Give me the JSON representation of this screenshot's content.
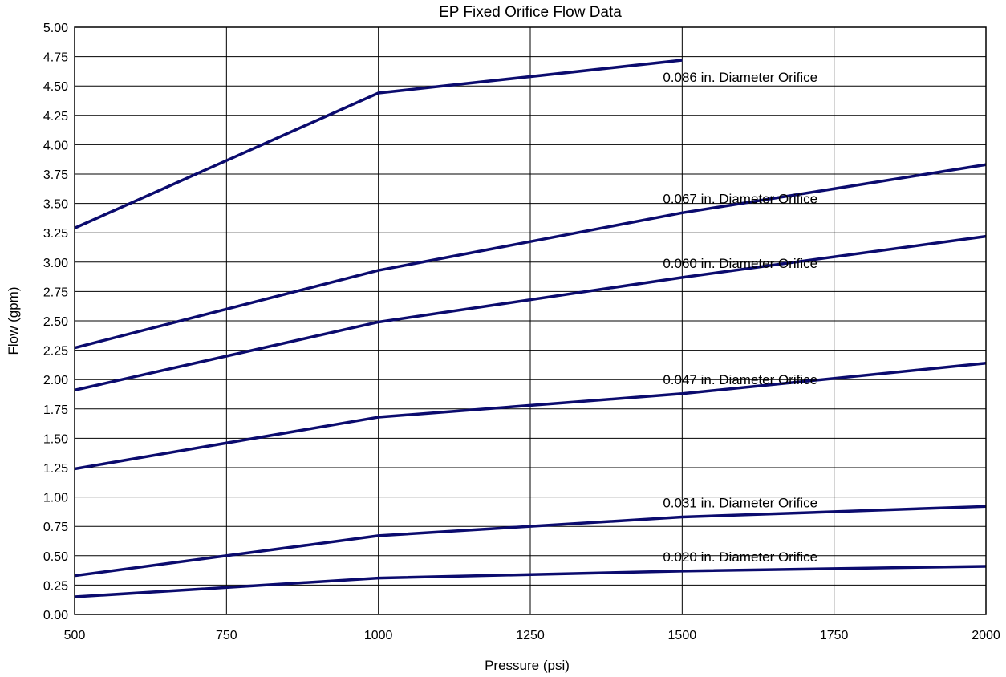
{
  "chart_data": {
    "type": "line",
    "title": "EP Fixed Orifice Flow Data",
    "xlabel": "Pressure (psi)",
    "ylabel": "Flow (gpm)",
    "xlim": [
      500,
      2000
    ],
    "ylim": [
      0,
      5
    ],
    "x_ticks": [
      "500",
      "750",
      "1000",
      "1250",
      "1500",
      "1750",
      "2000"
    ],
    "y_ticks": [
      "0.00",
      "0.25",
      "0.50",
      "0.75",
      "1.00",
      "1.25",
      "1.50",
      "1.75",
      "2.00",
      "2.25",
      "2.50",
      "2.75",
      "3.00",
      "3.25",
      "3.50",
      "3.75",
      "4.00",
      "4.25",
      "4.50",
      "4.75",
      "5.00"
    ],
    "grid": true,
    "legend": "none",
    "line_color": "#0b0b6e",
    "series": [
      {
        "name": "0.086 in. Diameter Orifice",
        "x": [
          500,
          1000,
          1500
        ],
        "values": [
          3.29,
          4.44,
          4.72
        ]
      },
      {
        "name": "0.067 in. Diameter Orifice",
        "x": [
          500,
          1000,
          1500,
          2000
        ],
        "values": [
          2.27,
          2.93,
          3.42,
          3.83
        ]
      },
      {
        "name": "0.060 in. Diameter Orifice",
        "x": [
          500,
          1000,
          1500,
          2000
        ],
        "values": [
          1.91,
          2.49,
          2.87,
          3.22
        ]
      },
      {
        "name": "0.047 in. Diameter Orifice",
        "x": [
          500,
          1000,
          1500,
          2000
        ],
        "values": [
          1.24,
          1.68,
          1.88,
          2.14
        ]
      },
      {
        "name": "0.031 in. Diameter Orifice",
        "x": [
          500,
          1000,
          1500,
          2000
        ],
        "values": [
          0.33,
          0.67,
          0.83,
          0.92
        ]
      },
      {
        "name": "0.020 in. Diameter Orifice",
        "x": [
          500,
          1000,
          1500,
          2000
        ],
        "values": [
          0.15,
          0.31,
          0.37,
          0.41
        ]
      }
    ]
  }
}
